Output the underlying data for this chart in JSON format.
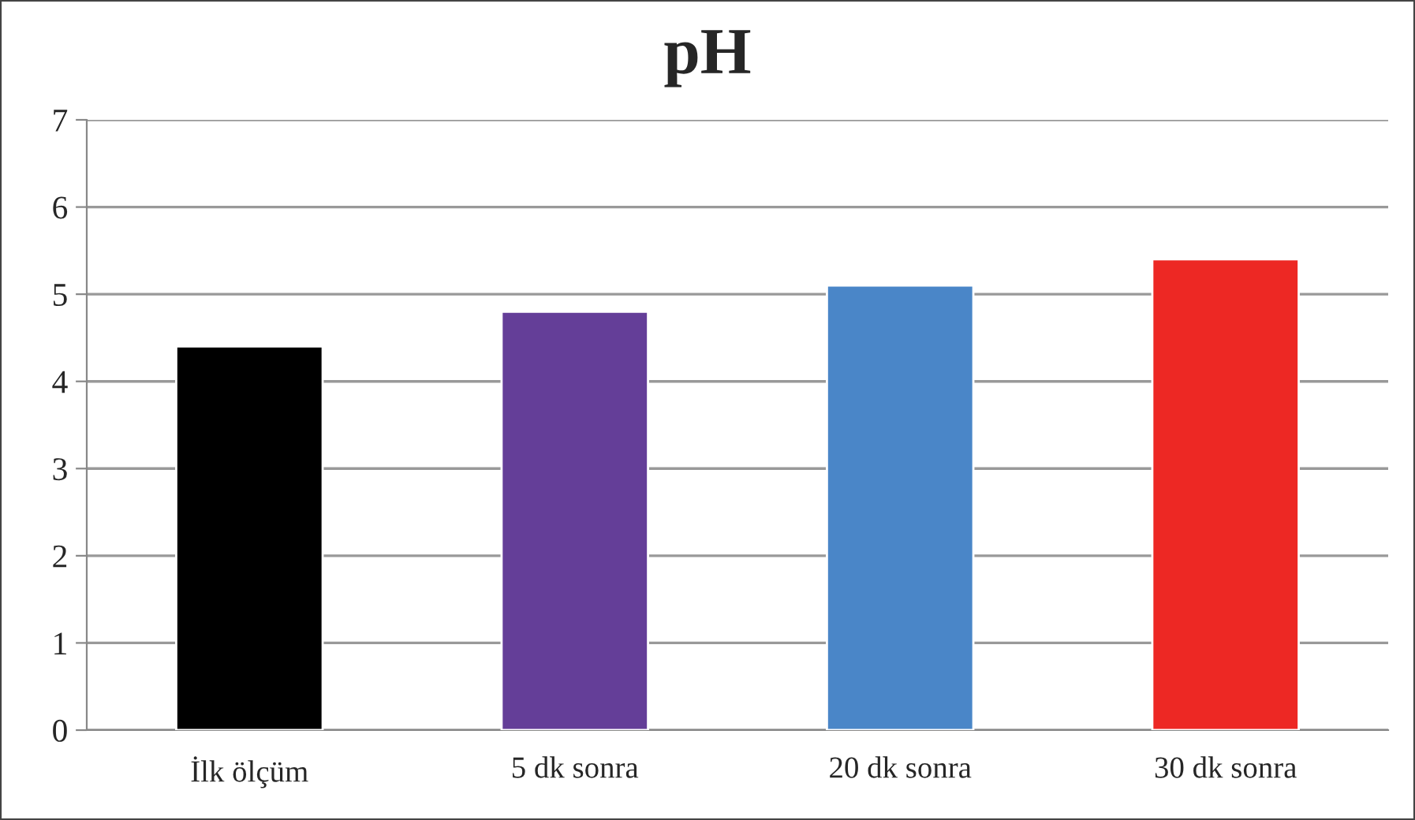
{
  "chart_data": {
    "type": "bar",
    "title": "pH",
    "categories": [
      "İlk ölçüm",
      "5 dk sonra",
      "20 dk sonra",
      "30 dk sonra"
    ],
    "values": [
      4.4,
      4.8,
      5.1,
      5.4
    ],
    "colors": [
      "#000000",
      "#643e98",
      "#4a86c8",
      "#ed2824"
    ],
    "ylim": [
      0,
      7
    ],
    "yticks": [
      0,
      1,
      2,
      3,
      4,
      5,
      6,
      7
    ],
    "grid": "y",
    "legend": false
  }
}
